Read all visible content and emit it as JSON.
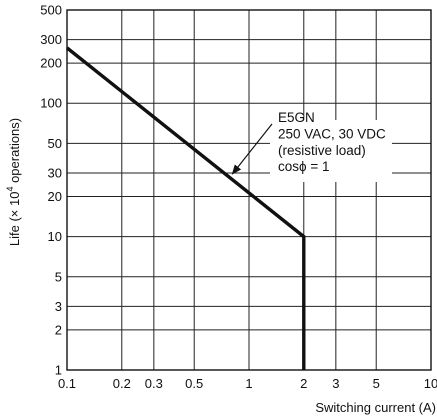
{
  "chart_data": {
    "type": "line",
    "xscale": "log",
    "yscale": "log",
    "xlim": [
      0.1,
      10
    ],
    "ylim": [
      1,
      500
    ],
    "grid": true,
    "xlabel": "Switching current (A)",
    "ylabel_parts": {
      "prefix": "Life (",
      "times": "×",
      "base": " 10",
      "exp": "4",
      "suffix": " operations)"
    },
    "x_ticks": [
      {
        "value": 0.1,
        "label": "0.1"
      },
      {
        "value": 0.2,
        "label": "0.2"
      },
      {
        "value": 0.3,
        "label": "0.3"
      },
      {
        "value": 0.5,
        "label": "0.5"
      },
      {
        "value": 1,
        "label": "1"
      },
      {
        "value": 2,
        "label": "2"
      },
      {
        "value": 3,
        "label": "3"
      },
      {
        "value": 5,
        "label": "5"
      },
      {
        "value": 10,
        "label": "10"
      }
    ],
    "y_ticks": [
      {
        "value": 1,
        "label": "1"
      },
      {
        "value": 2,
        "label": "2"
      },
      {
        "value": 3,
        "label": "3"
      },
      {
        "value": 5,
        "label": "5"
      },
      {
        "value": 10,
        "label": "10"
      },
      {
        "value": 20,
        "label": "20"
      },
      {
        "value": 30,
        "label": "30"
      },
      {
        "value": 50,
        "label": "50"
      },
      {
        "value": 100,
        "label": "100"
      },
      {
        "value": 200,
        "label": "200"
      },
      {
        "value": 300,
        "label": "300"
      },
      {
        "value": 500,
        "label": "500"
      }
    ],
    "series": [
      {
        "points": [
          {
            "x": 0.1,
            "y": 260
          },
          {
            "x": 2,
            "y": 10
          },
          {
            "x": 2,
            "y": 1
          }
        ]
      }
    ],
    "annotation": {
      "lines": [
        "E5GN",
        "250 VAC, 30 VDC",
        "(resistive load)",
        "cosϕ = 1"
      ],
      "arrow_target": {
        "x": 0.78,
        "y": 28
      }
    }
  }
}
